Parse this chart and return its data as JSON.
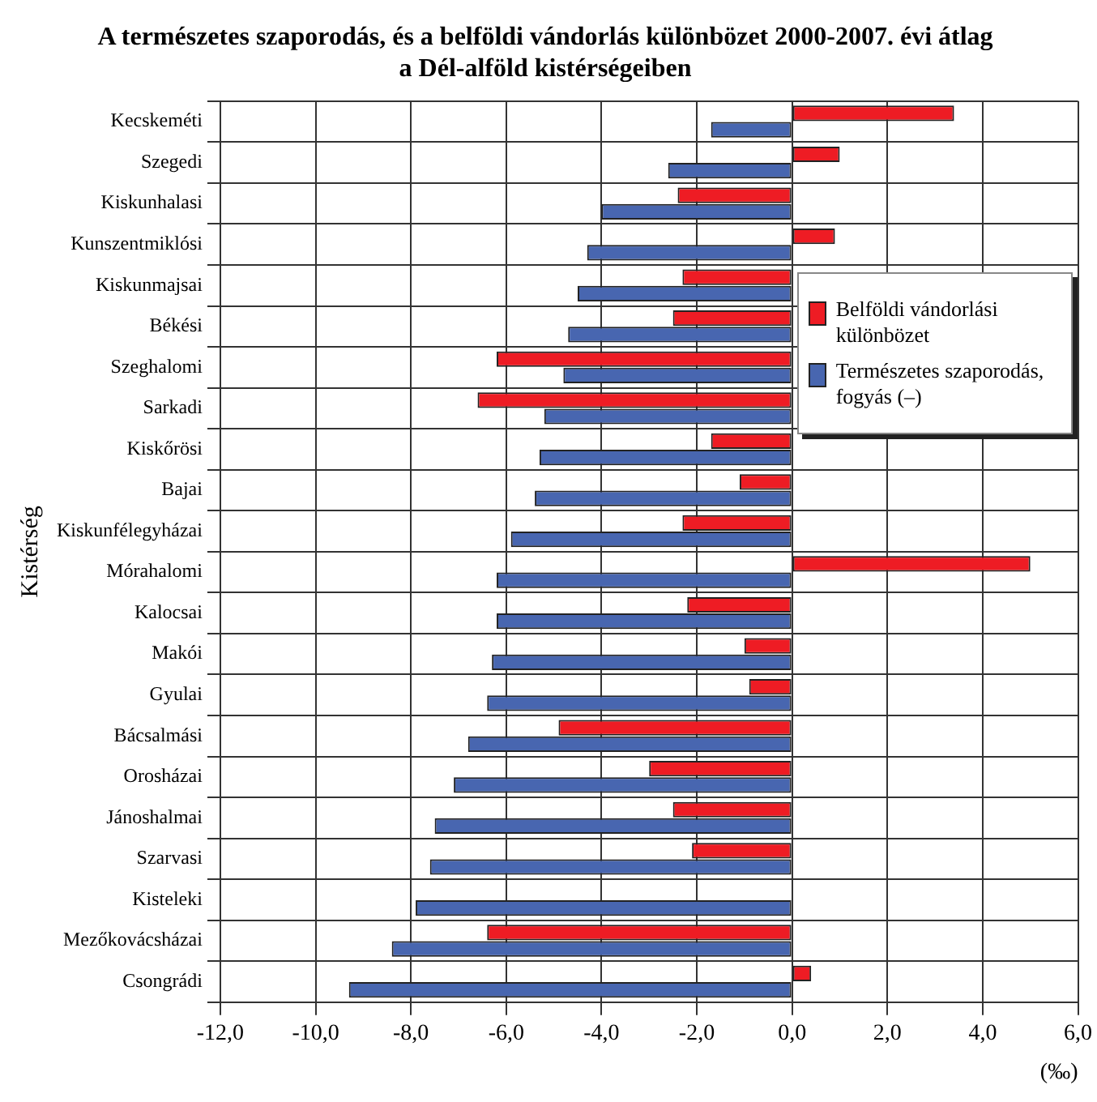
{
  "chart_data": {
    "type": "bar",
    "orientation": "horizontal",
    "title": "A természetes szaporodás, és a belföldi vándorlás különbözet 2000-2007. évi átlag a Dél-alföld kistérségeiben",
    "xlabel": "(‰)",
    "ylabel": "Kistérség",
    "categories": [
      "Kecskeméti",
      "Szegedi",
      "Kiskunhalasi",
      "Kunszentmiklósi",
      "Kiskunmajsai",
      "Békési",
      "Szeghalomi",
      "Sarkadi",
      "Kiskőrösi",
      "Bajai",
      "Kiskunfélegyházai",
      "Mórahalomi",
      "Kalocsai",
      "Makói",
      "Gyulai",
      "Bácsalmási",
      "Orosházai",
      "Jánoshalmai",
      "Szarvasi",
      "Kisteleki",
      "Mezőkovácsházai",
      "Csongrádi"
    ],
    "series": [
      {
        "name": "Belföldi vándorlási különbözet",
        "color": "#ee1c24",
        "values": [
          3.4,
          1.0,
          -2.4,
          0.9,
          -2.3,
          -2.5,
          -6.2,
          -6.6,
          -1.7,
          -1.1,
          -2.3,
          5.0,
          -2.2,
          -1.0,
          -0.9,
          -4.9,
          -3.0,
          -2.5,
          -2.1,
          0,
          -6.4,
          0.4
        ]
      },
      {
        "name": "Természetes szaporodás, fogyás (–)",
        "color": "#4866b0",
        "values": [
          -1.7,
          -2.6,
          -4.0,
          -4.3,
          -4.5,
          -4.7,
          -4.8,
          -5.2,
          -5.3,
          -5.4,
          -5.9,
          -6.2,
          -6.2,
          -6.3,
          -6.4,
          -6.8,
          -7.1,
          -7.5,
          -7.6,
          -7.9,
          -8.4,
          -9.3
        ]
      }
    ],
    "xlim": [
      -12,
      6
    ],
    "xticks": [
      {
        "value": -12,
        "label": "-12,0"
      },
      {
        "value": -10,
        "label": "-10,0"
      },
      {
        "value": -8,
        "label": "-8,0"
      },
      {
        "value": -6,
        "label": "-6,0"
      },
      {
        "value": -4,
        "label": "-4,0"
      },
      {
        "value": -2,
        "label": "-2,0"
      },
      {
        "value": 0,
        "label": "0,0"
      },
      {
        "value": 2,
        "label": "2,0"
      },
      {
        "value": 4,
        "label": "4,0"
      },
      {
        "value": 6,
        "label": "6,0"
      }
    ],
    "grid": true,
    "legend": "right"
  }
}
